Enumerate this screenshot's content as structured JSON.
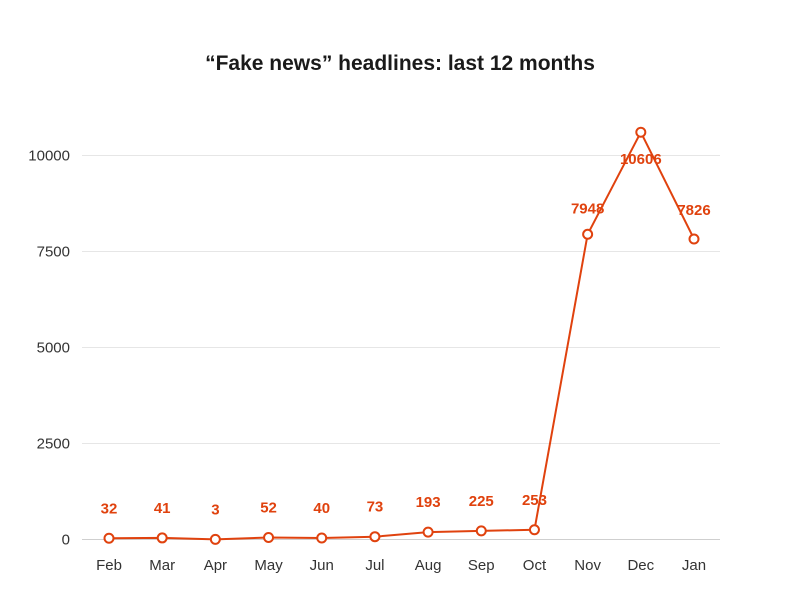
{
  "chart_data": {
    "type": "line",
    "title": "“Fake news” headlines: last 12 months",
    "xlabel": "",
    "ylabel": "",
    "categories": [
      "Feb",
      "Mar",
      "Apr",
      "May",
      "Jun",
      "Jul",
      "Aug",
      "Sep",
      "Oct",
      "Nov",
      "Dec",
      "Jan"
    ],
    "series": [
      {
        "values": [
          32,
          41,
          3,
          52,
          40,
          73,
          193,
          225,
          253,
          7948,
          10606,
          7826
        ]
      }
    ],
    "ylim": [
      0,
      10000
    ],
    "yticks": [
      0,
      2500,
      5000,
      7500,
      10000
    ],
    "grid": true,
    "data_labels": true,
    "line_color": "#e0420e"
  }
}
